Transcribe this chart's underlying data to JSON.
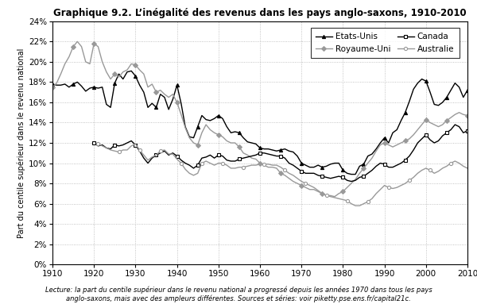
{
  "title": "Graphique 9.2. L’inégalité des revenus dans les pays anglo-saxons, 1910-2010",
  "ylabel": "Part du centile supérieur dans le revenu national",
  "footnote": "Lecture: la part du centile supérieur dans le revenu national a progressé depuis les années 1970 dans tous les pays\nanglo-saxons, mais avec des ampleurs différentes. Sources et séries: voir piketty.pse.ens.fr/capital21c.",
  "xlim": [
    1910,
    2010
  ],
  "ylim": [
    0,
    0.24
  ],
  "yticks": [
    0,
    0.02,
    0.04,
    0.06,
    0.08,
    0.1,
    0.12,
    0.14,
    0.16,
    0.18,
    0.2,
    0.22,
    0.24
  ],
  "xticks": [
    1910,
    1920,
    1930,
    1940,
    1950,
    1960,
    1970,
    1980,
    1990,
    2000,
    2010
  ],
  "usa": {
    "label": "Etats-Unis",
    "color": "#000000",
    "marker": "^",
    "markersize": 3,
    "linewidth": 1.0,
    "x": [
      1910,
      1911,
      1912,
      1913,
      1914,
      1915,
      1916,
      1917,
      1918,
      1919,
      1920,
      1921,
      1922,
      1923,
      1924,
      1925,
      1926,
      1927,
      1928,
      1929,
      1930,
      1931,
      1932,
      1933,
      1934,
      1935,
      1936,
      1937,
      1938,
      1939,
      1940,
      1941,
      1942,
      1943,
      1944,
      1945,
      1946,
      1947,
      1948,
      1949,
      1950,
      1951,
      1952,
      1953,
      1954,
      1955,
      1956,
      1957,
      1958,
      1959,
      1960,
      1961,
      1962,
      1963,
      1964,
      1965,
      1966,
      1967,
      1968,
      1969,
      1970,
      1971,
      1972,
      1973,
      1974,
      1975,
      1976,
      1977,
      1978,
      1979,
      1980,
      1981,
      1982,
      1983,
      1984,
      1985,
      1986,
      1987,
      1988,
      1989,
      1990,
      1991,
      1992,
      1993,
      1994,
      1995,
      1996,
      1997,
      1998,
      1999,
      2000,
      2001,
      2002,
      2003,
      2004,
      2005,
      2006,
      2007,
      2008,
      2009,
      2010
    ],
    "y": [
      0.178,
      0.177,
      0.177,
      0.178,
      0.175,
      0.178,
      0.18,
      0.176,
      0.171,
      0.174,
      0.175,
      0.174,
      0.175,
      0.158,
      0.155,
      0.179,
      0.188,
      0.183,
      0.19,
      0.191,
      0.186,
      0.177,
      0.17,
      0.155,
      0.159,
      0.155,
      0.168,
      0.165,
      0.153,
      0.163,
      0.177,
      0.159,
      0.136,
      0.126,
      0.125,
      0.136,
      0.147,
      0.143,
      0.142,
      0.144,
      0.147,
      0.144,
      0.136,
      0.13,
      0.131,
      0.13,
      0.125,
      0.121,
      0.12,
      0.119,
      0.115,
      0.114,
      0.114,
      0.113,
      0.112,
      0.113,
      0.114,
      0.112,
      0.111,
      0.107,
      0.1,
      0.098,
      0.096,
      0.096,
      0.098,
      0.096,
      0.097,
      0.099,
      0.1,
      0.1,
      0.093,
      0.09,
      0.089,
      0.089,
      0.097,
      0.099,
      0.107,
      0.109,
      0.114,
      0.12,
      0.125,
      0.12,
      0.13,
      0.133,
      0.142,
      0.15,
      0.161,
      0.173,
      0.179,
      0.183,
      0.181,
      0.17,
      0.158,
      0.157,
      0.16,
      0.165,
      0.172,
      0.179,
      0.175,
      0.165,
      0.172
    ]
  },
  "uk": {
    "label": "Royaume-Uni",
    "color": "#999999",
    "marker": "D",
    "markersize": 3,
    "linewidth": 1.0,
    "x": [
      1910,
      1911,
      1912,
      1913,
      1914,
      1915,
      1916,
      1917,
      1918,
      1919,
      1920,
      1921,
      1922,
      1923,
      1924,
      1925,
      1926,
      1927,
      1928,
      1929,
      1930,
      1931,
      1932,
      1933,
      1934,
      1935,
      1936,
      1937,
      1938,
      1939,
      1940,
      1941,
      1942,
      1943,
      1944,
      1945,
      1946,
      1947,
      1948,
      1949,
      1950,
      1951,
      1952,
      1953,
      1954,
      1955,
      1956,
      1957,
      1958,
      1959,
      1960,
      1961,
      1962,
      1963,
      1964,
      1965,
      1966,
      1967,
      1968,
      1969,
      1970,
      1971,
      1972,
      1973,
      1974,
      1975,
      1976,
      1977,
      1978,
      1979,
      1980,
      1981,
      1982,
      1983,
      1984,
      1985,
      1986,
      1987,
      1988,
      1989,
      1990,
      1991,
      1992,
      1993,
      1994,
      1995,
      1996,
      1997,
      1998,
      1999,
      2000,
      2001,
      2002,
      2003,
      2004,
      2005,
      2006,
      2007,
      2008,
      2009,
      2010
    ],
    "y": [
      0.175,
      0.179,
      0.188,
      0.198,
      0.205,
      0.215,
      0.22,
      0.215,
      0.2,
      0.198,
      0.218,
      0.215,
      0.2,
      0.19,
      0.183,
      0.188,
      0.185,
      0.19,
      0.192,
      0.198,
      0.197,
      0.192,
      0.188,
      0.175,
      0.178,
      0.17,
      0.172,
      0.168,
      0.165,
      0.168,
      0.16,
      0.148,
      0.135,
      0.125,
      0.12,
      0.118,
      0.13,
      0.138,
      0.133,
      0.13,
      0.128,
      0.126,
      0.122,
      0.12,
      0.12,
      0.116,
      0.11,
      0.108,
      0.105,
      0.104,
      0.1,
      0.098,
      0.096,
      0.096,
      0.095,
      0.09,
      0.088,
      0.085,
      0.082,
      0.08,
      0.078,
      0.076,
      0.074,
      0.074,
      0.072,
      0.07,
      0.068,
      0.068,
      0.067,
      0.07,
      0.072,
      0.076,
      0.08,
      0.084,
      0.09,
      0.095,
      0.1,
      0.105,
      0.112,
      0.118,
      0.12,
      0.118,
      0.116,
      0.118,
      0.12,
      0.122,
      0.124,
      0.128,
      0.133,
      0.138,
      0.143,
      0.14,
      0.138,
      0.136,
      0.138,
      0.142,
      0.145,
      0.148,
      0.15,
      0.148,
      0.147
    ]
  },
  "canada": {
    "label": "Canada",
    "color": "#000000",
    "marker": "s",
    "markersize": 3,
    "linewidth": 1.0,
    "x": [
      1920,
      1921,
      1922,
      1923,
      1924,
      1925,
      1926,
      1927,
      1928,
      1929,
      1930,
      1931,
      1932,
      1933,
      1934,
      1935,
      1936,
      1937,
      1938,
      1939,
      1940,
      1941,
      1942,
      1943,
      1944,
      1945,
      1946,
      1947,
      1948,
      1949,
      1950,
      1951,
      1952,
      1953,
      1954,
      1955,
      1956,
      1957,
      1958,
      1959,
      1960,
      1961,
      1962,
      1963,
      1964,
      1965,
      1966,
      1967,
      1968,
      1969,
      1970,
      1971,
      1972,
      1973,
      1974,
      1975,
      1976,
      1977,
      1978,
      1979,
      1980,
      1981,
      1982,
      1983,
      1984,
      1985,
      1986,
      1987,
      1988,
      1989,
      1990,
      1991,
      1992,
      1993,
      1994,
      1995,
      1996,
      1997,
      1998,
      1999,
      2000,
      2001,
      2002,
      2003,
      2004,
      2005,
      2006,
      2007,
      2008,
      2009,
      2010
    ],
    "y": [
      0.12,
      0.117,
      0.118,
      0.115,
      0.114,
      0.118,
      0.117,
      0.118,
      0.12,
      0.122,
      0.118,
      0.112,
      0.105,
      0.1,
      0.105,
      0.108,
      0.11,
      0.112,
      0.108,
      0.11,
      0.107,
      0.103,
      0.1,
      0.098,
      0.095,
      0.098,
      0.105,
      0.106,
      0.108,
      0.105,
      0.108,
      0.107,
      0.103,
      0.102,
      0.102,
      0.104,
      0.105,
      0.106,
      0.107,
      0.108,
      0.11,
      0.11,
      0.109,
      0.108,
      0.107,
      0.107,
      0.105,
      0.1,
      0.098,
      0.095,
      0.092,
      0.09,
      0.09,
      0.09,
      0.088,
      0.087,
      0.086,
      0.085,
      0.086,
      0.087,
      0.086,
      0.083,
      0.082,
      0.083,
      0.086,
      0.087,
      0.09,
      0.093,
      0.097,
      0.1,
      0.099,
      0.096,
      0.096,
      0.098,
      0.1,
      0.103,
      0.107,
      0.113,
      0.12,
      0.124,
      0.128,
      0.123,
      0.12,
      0.122,
      0.127,
      0.13,
      0.133,
      0.138,
      0.136,
      0.13,
      0.132
    ]
  },
  "australia": {
    "label": "Australie",
    "color": "#999999",
    "marker": "o",
    "markersize": 3,
    "linewidth": 1.0,
    "x": [
      1921,
      1922,
      1923,
      1924,
      1925,
      1926,
      1927,
      1928,
      1929,
      1930,
      1931,
      1932,
      1933,
      1934,
      1935,
      1936,
      1937,
      1938,
      1939,
      1940,
      1941,
      1942,
      1943,
      1944,
      1945,
      1946,
      1947,
      1948,
      1949,
      1950,
      1951,
      1952,
      1953,
      1954,
      1955,
      1956,
      1957,
      1958,
      1959,
      1960,
      1961,
      1962,
      1963,
      1964,
      1965,
      1966,
      1967,
      1968,
      1969,
      1970,
      1971,
      1972,
      1973,
      1974,
      1975,
      1976,
      1977,
      1978,
      1979,
      1980,
      1981,
      1982,
      1983,
      1984,
      1985,
      1986,
      1987,
      1988,
      1989,
      1990,
      1991,
      1992,
      1993,
      1994,
      1995,
      1996,
      1997,
      1998,
      1999,
      2000,
      2001,
      2002,
      2003,
      2004,
      2005,
      2006,
      2007,
      2008,
      2009,
      2010
    ],
    "y": [
      0.119,
      0.117,
      0.115,
      0.113,
      0.112,
      0.111,
      0.113,
      0.113,
      0.117,
      0.119,
      0.113,
      0.108,
      0.103,
      0.106,
      0.108,
      0.112,
      0.113,
      0.109,
      0.109,
      0.104,
      0.1,
      0.094,
      0.09,
      0.088,
      0.09,
      0.1,
      0.102,
      0.1,
      0.098,
      0.1,
      0.1,
      0.098,
      0.095,
      0.095,
      0.096,
      0.096,
      0.097,
      0.098,
      0.098,
      0.099,
      0.099,
      0.099,
      0.098,
      0.098,
      0.096,
      0.093,
      0.09,
      0.088,
      0.085,
      0.082,
      0.08,
      0.078,
      0.076,
      0.073,
      0.07,
      0.068,
      0.067,
      0.066,
      0.065,
      0.064,
      0.063,
      0.06,
      0.058,
      0.058,
      0.06,
      0.062,
      0.065,
      0.07,
      0.074,
      0.078,
      0.076,
      0.075,
      0.076,
      0.078,
      0.08,
      0.083,
      0.086,
      0.09,
      0.093,
      0.095,
      0.093,
      0.09,
      0.092,
      0.095,
      0.097,
      0.1,
      0.102,
      0.1,
      0.097,
      0.095
    ]
  },
  "background_color": "#ffffff",
  "grid_color": "#aaaaaa",
  "title_fontsize": 8.5,
  "axis_label_fontsize": 7.0,
  "tick_fontsize": 7.5,
  "legend_fontsize": 7.5,
  "footnote_fontsize": 6.0
}
